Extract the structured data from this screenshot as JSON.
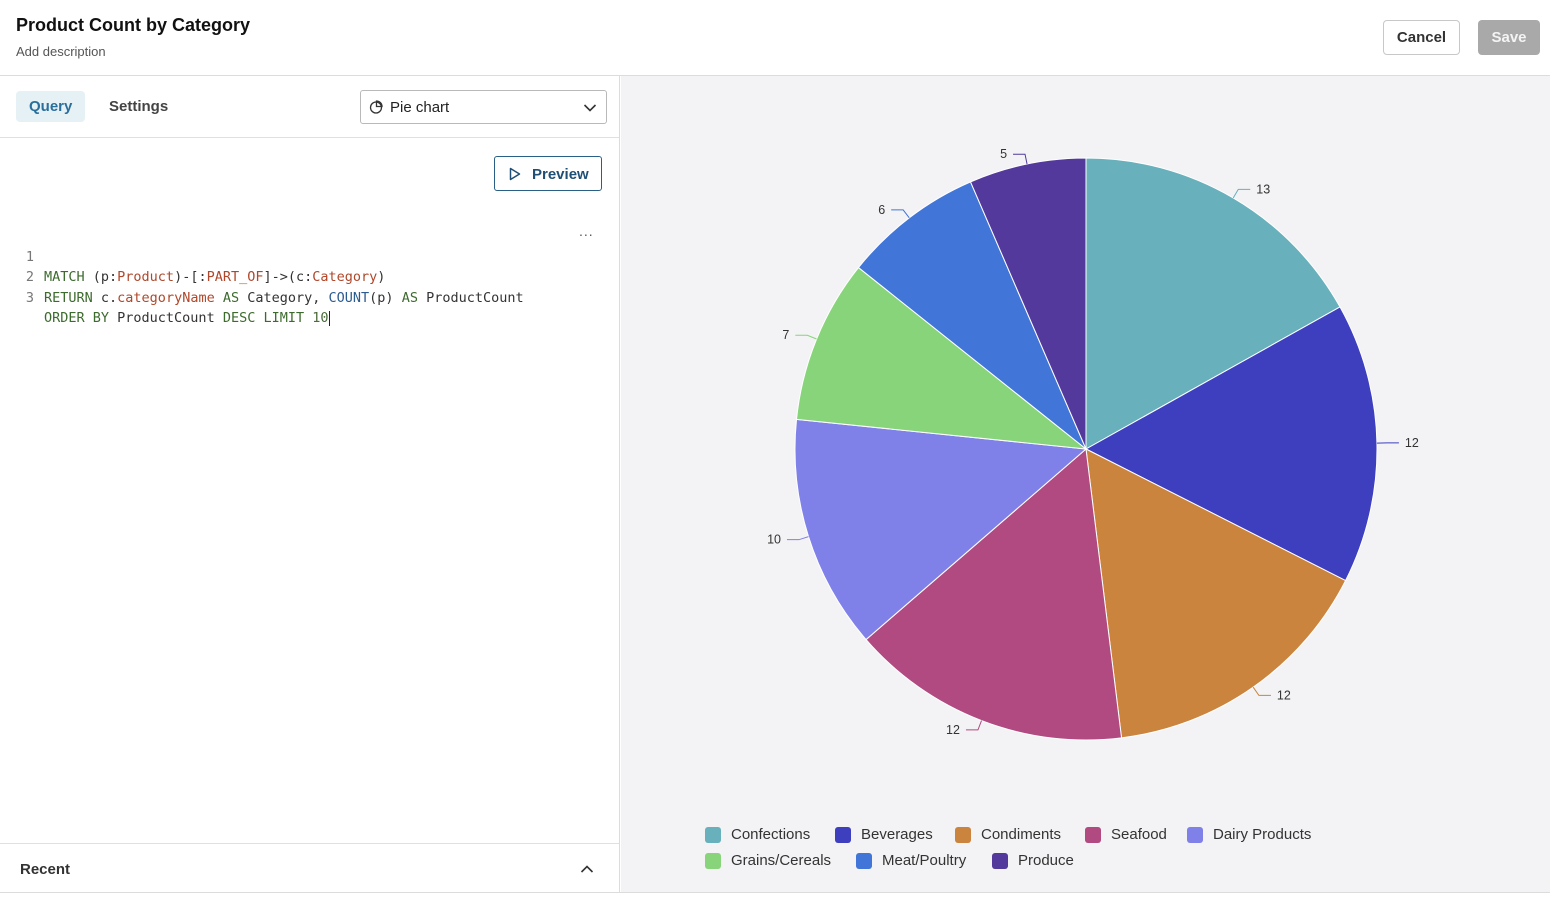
{
  "header": {
    "title": "Product Count by Category",
    "description": "Add description",
    "cancel_label": "Cancel",
    "save_label": "Save"
  },
  "tabs": [
    {
      "label": "Query",
      "active": true
    },
    {
      "label": "Settings",
      "active": false
    }
  ],
  "chart_type_select": {
    "selected": "Pie chart",
    "icon": "pie-chart-icon"
  },
  "preview_label": "Preview",
  "editor": {
    "line_numbers": [
      "1",
      "2",
      "3"
    ],
    "more_label": "..."
  },
  "recent_label": "Recent",
  "colors": {
    "Confections": "#67b0bc",
    "Beverages": "#3e3fbf",
    "Condiments": "#cb843d",
    "Seafood": "#b04a80",
    "Dairy Products": "#8081e8",
    "Grains/Cereals": "#88d47a",
    "Meat/Poultry": "#4175d8",
    "Produce": "#53399b"
  },
  "chart_data": {
    "type": "pie",
    "categories": [
      "Confections",
      "Beverages",
      "Condiments",
      "Seafood",
      "Dairy Products",
      "Grains/Cereals",
      "Meat/Poultry",
      "Produce"
    ],
    "values": [
      13,
      12,
      12,
      12,
      10,
      7,
      6,
      5
    ],
    "legend_position": "bottom",
    "legend_entries": [
      "Confections",
      "Beverages",
      "Condiments",
      "Seafood",
      "Dairy Products",
      "Grains/Cereals",
      "Meat/Poultry",
      "Produce"
    ]
  }
}
